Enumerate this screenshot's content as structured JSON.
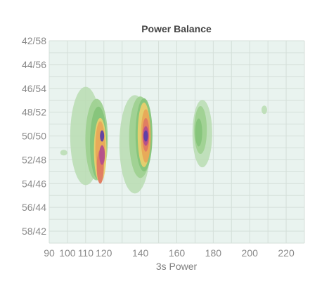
{
  "chart_data": {
    "type": "heatmap",
    "title": "Power Balance",
    "xlabel": "3s Power",
    "ylabel": "",
    "x_ticks": [
      90,
      100,
      110,
      120,
      140,
      160,
      180,
      200,
      220
    ],
    "y_ticks": [
      "42/58",
      "44/56",
      "46/54",
      "48/52",
      "50/50",
      "52/48",
      "54/46",
      "56/44",
      "58/42"
    ],
    "xlim": [
      90,
      230
    ],
    "y_range": [
      42,
      59
    ],
    "grid": true,
    "legend": "none",
    "colors": {
      "background": "#e9f3ef",
      "levels": [
        "#b9dcb1",
        "#9fd191",
        "#86c47a",
        "#e9cf6e",
        "#e8a857",
        "#e07a62",
        "#b34e8c",
        "#5c3ea6"
      ]
    },
    "series": [
      {
        "points": [
          {
            "x": 119,
            "y": 50.0,
            "level": 8
          },
          {
            "x": 119,
            "y": 51.6,
            "level": 7
          },
          {
            "x": 118,
            "y": 52.6,
            "level": 6
          },
          {
            "x": 118,
            "y": 51.0,
            "level": 5
          },
          {
            "x": 118,
            "y": 51.2,
            "level": 4
          },
          {
            "x": 117,
            "y": 50.6,
            "level": 3
          },
          {
            "x": 116,
            "y": 50.3,
            "level": 2
          },
          {
            "x": 110,
            "y": 50.0,
            "level": 1
          },
          {
            "x": 98,
            "y": 51.4,
            "level": 1
          },
          {
            "x": 143,
            "y": 50.0,
            "level": 8
          },
          {
            "x": 143,
            "y": 50.0,
            "level": 7
          },
          {
            "x": 143,
            "y": 49.9,
            "level": 6
          },
          {
            "x": 143,
            "y": 50.0,
            "level": 5
          },
          {
            "x": 142,
            "y": 49.9,
            "level": 4
          },
          {
            "x": 142,
            "y": 49.9,
            "level": 3
          },
          {
            "x": 140,
            "y": 50.1,
            "level": 2
          },
          {
            "x": 137,
            "y": 50.7,
            "level": 1
          },
          {
            "x": 172,
            "y": 49.7,
            "level": 3
          },
          {
            "x": 173,
            "y": 49.5,
            "level": 2
          },
          {
            "x": 174,
            "y": 49.8,
            "level": 1
          },
          {
            "x": 208,
            "y": 47.8,
            "level": 1
          }
        ]
      }
    ]
  }
}
